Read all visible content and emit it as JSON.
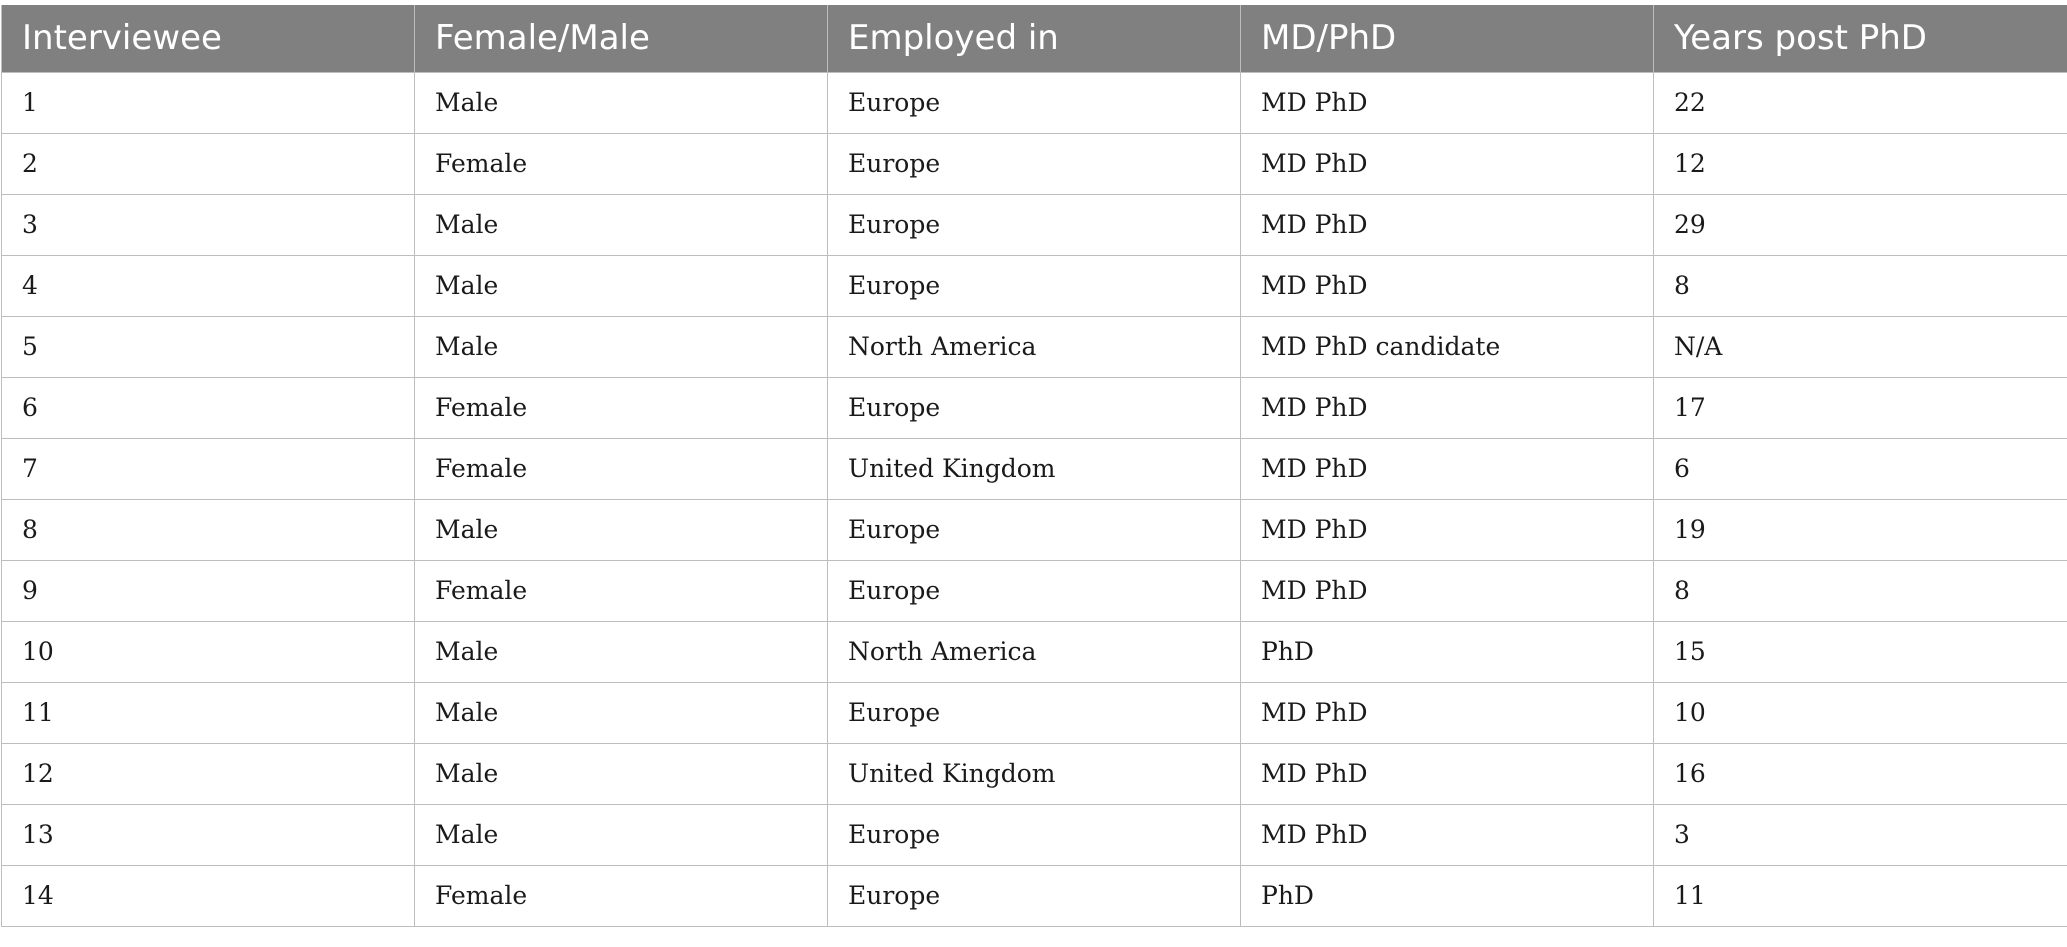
{
  "table": {
    "headers": [
      "Interviewee",
      "Female/Male",
      "Employed in",
      "MD/PhD",
      "Years post PhD"
    ],
    "rows": [
      [
        "1",
        "Male",
        "Europe",
        "MD PhD",
        "22"
      ],
      [
        "2",
        "Female",
        "Europe",
        "MD PhD",
        "12"
      ],
      [
        "3",
        "Male",
        "Europe",
        "MD PhD",
        "29"
      ],
      [
        "4",
        "Male",
        "Europe",
        "MD PhD",
        "8"
      ],
      [
        "5",
        "Male",
        "North America",
        "MD PhD candidate",
        "N/A"
      ],
      [
        "6",
        "Female",
        "Europe",
        "MD PhD",
        "17"
      ],
      [
        "7",
        "Female",
        "United Kingdom",
        "MD PhD",
        "6"
      ],
      [
        "8",
        "Male",
        "Europe",
        "MD PhD",
        "19"
      ],
      [
        "9",
        "Female",
        "Europe",
        "MD PhD",
        "8"
      ],
      [
        "10",
        "Male",
        "North America",
        "PhD",
        "15"
      ],
      [
        "11",
        "Male",
        "Europe",
        "MD PhD",
        "10"
      ],
      [
        "12",
        "Male",
        "United Kingdom",
        "MD PhD",
        "16"
      ],
      [
        "13",
        "Male",
        "Europe",
        "MD PhD",
        "3"
      ],
      [
        "14",
        "Female",
        "Europe",
        "PhD",
        "11"
      ]
    ]
  },
  "colors": {
    "header_background": "#7f807f",
    "header_text": "#ffffff",
    "grid_line": "#bdbdbd",
    "cell_text": "#1a1a1a"
  }
}
